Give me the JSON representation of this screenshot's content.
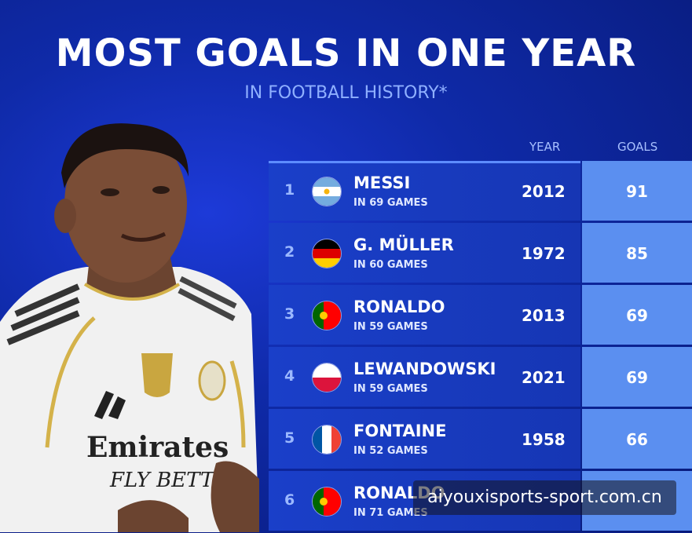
{
  "title": "MOST GOALS IN ONE YEAR",
  "subtitle": "IN FOOTBALL HISTORY*",
  "columns": {
    "year": "YEAR",
    "goals": "GOALS"
  },
  "rows": [
    {
      "rank": "1",
      "name": "MESSI",
      "games": "IN 69 GAMES",
      "year": "2012",
      "goals": "91",
      "flag": "argentina-flag-icon"
    },
    {
      "rank": "2",
      "name": "G. MÜLLER",
      "games": "IN 60 GAMES",
      "year": "1972",
      "goals": "85",
      "flag": "germany-flag-icon"
    },
    {
      "rank": "3",
      "name": "RONALDO",
      "games": "IN 59 GAMES",
      "year": "2013",
      "goals": "69",
      "flag": "portugal-flag-icon"
    },
    {
      "rank": "4",
      "name": "LEWANDOWSKI",
      "games": "IN 59 GAMES",
      "year": "2021",
      "goals": "69",
      "flag": "poland-flag-icon"
    },
    {
      "rank": "5",
      "name": "FONTAINE",
      "games": "IN 52 GAMES",
      "year": "1958",
      "goals": "66",
      "flag": "france-flag-icon"
    },
    {
      "rank": "6",
      "name": "RONALDO",
      "games": "IN 71 GAMES",
      "year": "",
      "goals": "",
      "flag": "portugal-flag-icon"
    }
  ],
  "player": {
    "shirt_sponsor_line1": "Emirates",
    "shirt_sponsor_line2": "FLY BETTE"
  },
  "watermark": "aiyouxisports-sport.com.cn",
  "colors": {
    "background": "#0f2aa8",
    "row": "#1a3fc9",
    "goals_cell": "#5b8ff0",
    "subtitle": "#8fb0ff"
  }
}
